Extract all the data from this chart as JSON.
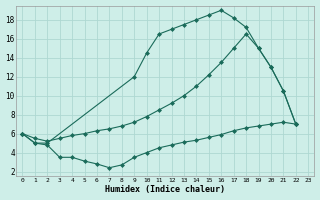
{
  "xlabel": "Humidex (Indice chaleur)",
  "bg_color": "#ceeee8",
  "grid_color": "#aed8d2",
  "line_color": "#1a6b5a",
  "x_ticks": [
    0,
    1,
    2,
    3,
    4,
    5,
    6,
    7,
    8,
    9,
    10,
    11,
    12,
    13,
    14,
    15,
    16,
    17,
    18,
    19,
    20,
    21,
    22,
    23
  ],
  "y_ticks": [
    2,
    4,
    6,
    8,
    10,
    12,
    14,
    16,
    18
  ],
  "ylim": [
    1.5,
    19.5
  ],
  "xlim": [
    -0.5,
    23.5
  ],
  "line1_x": [
    0,
    1,
    2,
    9,
    10,
    11,
    12,
    13,
    14,
    15,
    16,
    17,
    18,
    19,
    20,
    21,
    22
  ],
  "line1_y": [
    6,
    5,
    5,
    12,
    14.5,
    16.5,
    17,
    17.5,
    18,
    18.5,
    19,
    18.2,
    17.2,
    15,
    13,
    10.5,
    7
  ],
  "line2_x": [
    0,
    1,
    2,
    3,
    4,
    5,
    6,
    7,
    8,
    9,
    10,
    11,
    12,
    13,
    14,
    15,
    16,
    17,
    18,
    19,
    20,
    21,
    22
  ],
  "line2_y": [
    6,
    5.5,
    5.2,
    5.5,
    5.8,
    6.0,
    6.3,
    6.5,
    6.8,
    7.2,
    7.8,
    8.5,
    9.2,
    10.0,
    11.0,
    12.2,
    13.5,
    15.0,
    16.5,
    15,
    13,
    10.5,
    7
  ],
  "line3_x": [
    0,
    1,
    2,
    3,
    4,
    5,
    6,
    7,
    8,
    9,
    10,
    11,
    12,
    13,
    14,
    15,
    16,
    17,
    18,
    19,
    20,
    21,
    22
  ],
  "line3_y": [
    6,
    5,
    4.8,
    3.5,
    3.5,
    3.1,
    2.8,
    2.4,
    2.7,
    3.5,
    4.0,
    4.5,
    4.8,
    5.1,
    5.3,
    5.6,
    5.9,
    6.3,
    6.6,
    6.8,
    7.0,
    7.2,
    7.0
  ]
}
